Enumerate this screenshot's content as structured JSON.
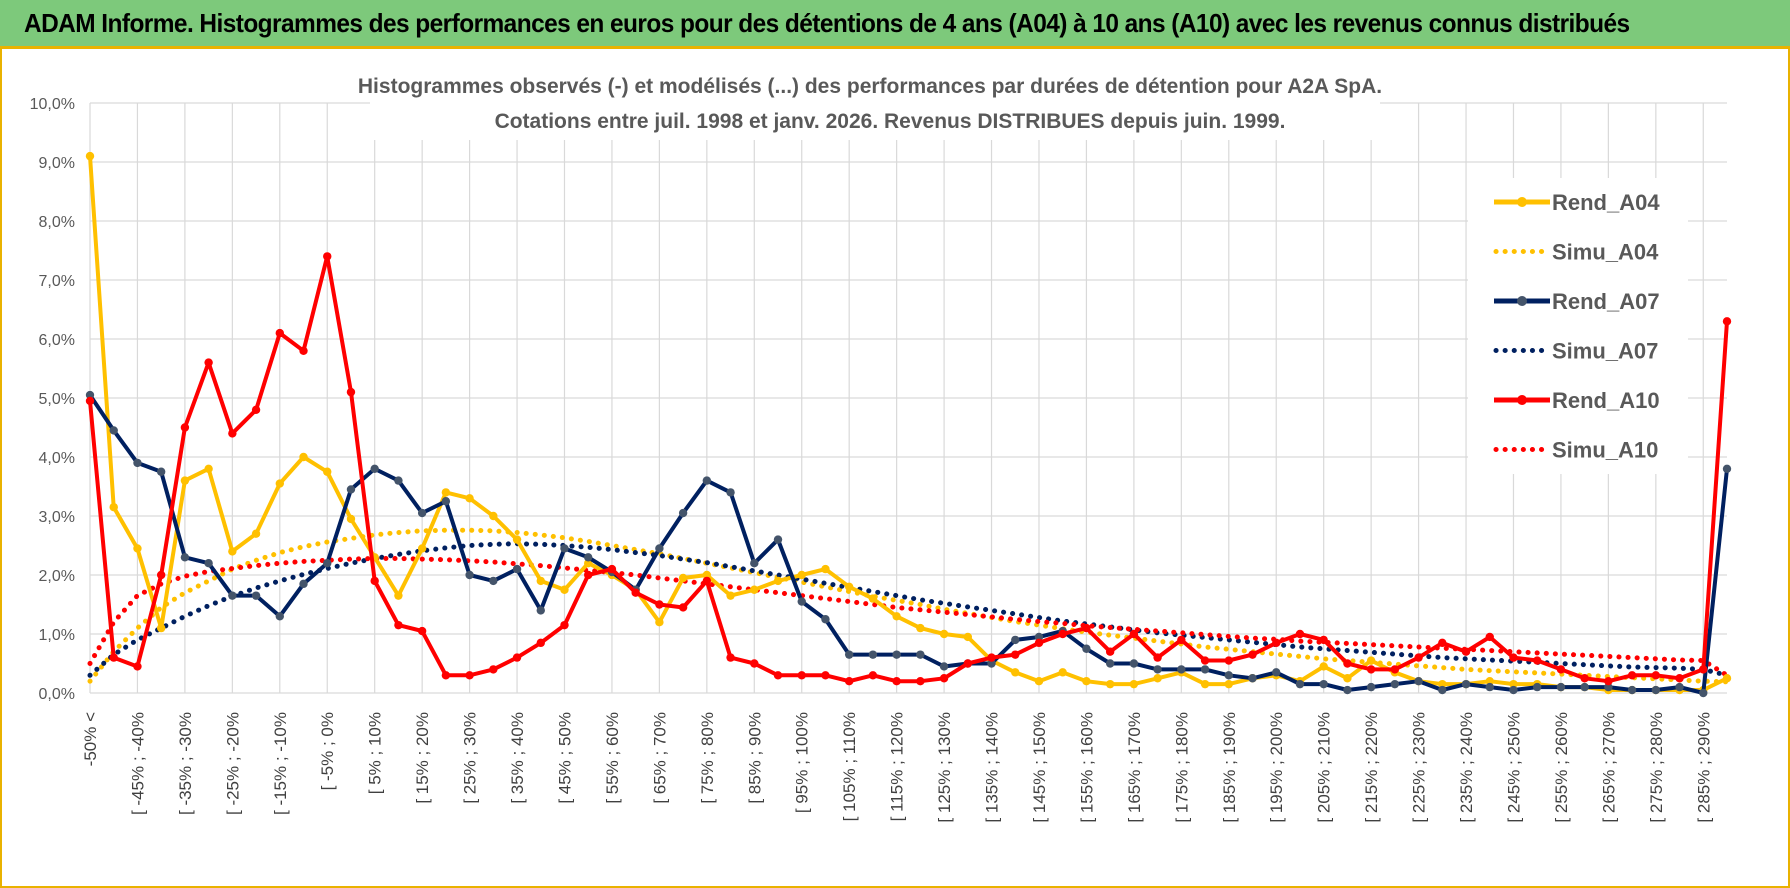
{
  "banner": {
    "title": "ADAM Informe. Histogrammes des performances en euros pour des détentions de 4 ans (A04) à 10 ans (A10) avec les revenus connus distribués"
  },
  "colors": {
    "banner_bg": "#7dc97b",
    "accent": "#e9b200",
    "A04": "#ffc000",
    "A07": "#002060",
    "A10": "#ff0000",
    "marker_A07": "#44546a",
    "grid": "#d9d9d9"
  },
  "chart_data": {
    "type": "line",
    "title_lines": [
      "Histogrammes observés (-) et modélisés (...) des performances par durées de détention pour A2A SpA.",
      "Cotations entre juil. 1998 et janv. 2026. Revenus DISTRIBUES depuis juin. 1999."
    ],
    "ylim": [
      0,
      10
    ],
    "y_ticks": [
      "0,0%",
      "1,0%",
      "2,0%",
      "3,0%",
      "4,0%",
      "5,0%",
      "6,0%",
      "7,0%",
      "8,0%",
      "9,0%",
      "10,0%"
    ],
    "n_points": 70,
    "x_tick_labels": [
      "-50% <",
      "[ -45% ; -40%",
      "[ -35% ; -30%",
      "[ -25% ; -20%",
      "[ -15% ; -10%",
      "[ -5% ; 0%",
      "[ 5% ; 10%",
      "[ 15% ; 20%",
      "[ 25% ; 30%",
      "[ 35% ; 40%",
      "[ 45% ; 50%",
      "[ 55% ; 60%",
      "[ 65% ; 70%",
      "[ 75% ; 80%",
      "[ 85% ; 90%",
      "[ 95% ; 100%",
      "[ 105% ; 110%",
      "[ 115% ; 120%",
      "[ 125% ; 130%",
      "[ 135% ; 140%",
      "[ 145% ; 150%",
      "[ 155% ; 160%",
      "[ 165% ; 170%",
      "[ 175% ; 180%",
      "[ 185% ; 190%",
      "[ 195% ; 200%",
      "[ 205% ; 210%",
      "[ 215% ; 220%",
      "[ 225% ; 230%",
      "[ 235% ; 240%",
      "[ 245% ; 250%",
      "[ 255% ; 260%",
      "[ 265% ; 270%",
      "[ 275% ; 280%",
      "[ 285% ; 290%"
    ],
    "legend": [
      "Rend_A04",
      "Simu_A04",
      "Rend_A07",
      "Simu_A07",
      "Rend_A10",
      "Simu_A10"
    ],
    "series": [
      {
        "name": "Rend_A04",
        "kind": "observed",
        "color": "#ffc000",
        "marker": "#ffc000",
        "values": [
          9.1,
          3.15,
          2.45,
          1.1,
          3.6,
          3.8,
          2.4,
          2.7,
          3.55,
          4.0,
          3.75,
          2.95,
          2.3,
          1.65,
          2.45,
          3.4,
          3.3,
          3.0,
          2.6,
          1.9,
          1.75,
          2.2,
          2.0,
          1.75,
          1.2,
          1.95,
          2.0,
          1.65,
          1.75,
          1.9,
          2.0,
          2.1,
          1.8,
          1.6,
          1.3,
          1.1,
          1.0,
          0.95,
          0.55,
          0.35,
          0.2,
          0.35,
          0.2,
          0.15,
          0.15,
          0.25,
          0.35,
          0.15,
          0.15,
          0.25,
          0.3,
          0.2,
          0.45,
          0.25,
          0.55,
          0.35,
          0.2,
          0.15,
          0.15,
          0.2,
          0.15,
          0.15,
          0.1,
          0.1,
          0.05,
          0.05,
          0.05,
          0.05,
          0.05,
          0.25
        ]
      },
      {
        "name": "Simu_A04",
        "kind": "model",
        "color": "#ffc000",
        "values": [
          0.2,
          0.7,
          1.1,
          1.45,
          1.7,
          1.9,
          2.1,
          2.25,
          2.38,
          2.48,
          2.56,
          2.62,
          2.68,
          2.72,
          2.75,
          2.76,
          2.76,
          2.75,
          2.72,
          2.68,
          2.63,
          2.57,
          2.5,
          2.43,
          2.36,
          2.28,
          2.2,
          2.12,
          2.04,
          1.96,
          1.88,
          1.8,
          1.72,
          1.64,
          1.57,
          1.5,
          1.42,
          1.35,
          1.28,
          1.21,
          1.15,
          1.09,
          1.03,
          0.98,
          0.93,
          0.88,
          0.83,
          0.78,
          0.74,
          0.7,
          0.66,
          0.62,
          0.58,
          0.55,
          0.52,
          0.49,
          0.46,
          0.43,
          0.4,
          0.38,
          0.36,
          0.34,
          0.32,
          0.3,
          0.28,
          0.26,
          0.24,
          0.22,
          0.2,
          0.19
        ]
      },
      {
        "name": "Rend_A07",
        "kind": "observed",
        "color": "#002060",
        "marker": "#44546a",
        "values": [
          5.05,
          4.45,
          3.9,
          3.75,
          2.3,
          2.2,
          1.65,
          1.65,
          1.3,
          1.85,
          2.2,
          3.45,
          3.8,
          3.6,
          3.05,
          3.25,
          2.0,
          1.9,
          2.1,
          1.4,
          2.45,
          2.3,
          2.05,
          1.75,
          2.45,
          3.05,
          3.6,
          3.4,
          2.2,
          2.6,
          1.55,
          1.25,
          0.65,
          0.65,
          0.65,
          0.65,
          0.45,
          0.5,
          0.5,
          0.9,
          0.95,
          1.05,
          0.75,
          0.5,
          0.5,
          0.4,
          0.4,
          0.4,
          0.3,
          0.25,
          0.35,
          0.15,
          0.15,
          0.05,
          0.1,
          0.15,
          0.2,
          0.05,
          0.15,
          0.1,
          0.05,
          0.1,
          0.1,
          0.1,
          0.1,
          0.05,
          0.05,
          0.1,
          0.0,
          3.8
        ]
      },
      {
        "name": "Simu_A07",
        "kind": "model",
        "color": "#002060",
        "values": [
          0.3,
          0.65,
          0.9,
          1.1,
          1.3,
          1.48,
          1.64,
          1.78,
          1.9,
          2.01,
          2.11,
          2.2,
          2.28,
          2.35,
          2.41,
          2.46,
          2.5,
          2.52,
          2.53,
          2.52,
          2.5,
          2.47,
          2.43,
          2.38,
          2.33,
          2.27,
          2.21,
          2.14,
          2.07,
          2.0,
          1.93,
          1.86,
          1.79,
          1.72,
          1.65,
          1.58,
          1.52,
          1.46,
          1.4,
          1.34,
          1.28,
          1.22,
          1.17,
          1.12,
          1.07,
          1.02,
          0.98,
          0.94,
          0.9,
          0.86,
          0.82,
          0.78,
          0.75,
          0.72,
          0.69,
          0.66,
          0.63,
          0.6,
          0.58,
          0.56,
          0.54,
          0.52,
          0.5,
          0.48,
          0.46,
          0.44,
          0.43,
          0.42,
          0.4,
          0.3
        ]
      },
      {
        "name": "Rend_A10",
        "kind": "observed",
        "color": "#ff0000",
        "marker": "#ff0000",
        "values": [
          4.95,
          0.6,
          0.45,
          2.0,
          4.5,
          5.6,
          4.4,
          4.8,
          6.1,
          5.8,
          7.4,
          5.1,
          1.9,
          1.15,
          1.05,
          0.3,
          0.3,
          0.4,
          0.6,
          0.85,
          1.15,
          2.0,
          2.1,
          1.7,
          1.5,
          1.45,
          1.9,
          0.6,
          0.5,
          0.3,
          0.3,
          0.3,
          0.2,
          0.3,
          0.2,
          0.2,
          0.25,
          0.5,
          0.6,
          0.65,
          0.85,
          1.0,
          1.1,
          0.7,
          1.0,
          0.6,
          0.9,
          0.55,
          0.55,
          0.65,
          0.85,
          1.0,
          0.9,
          0.5,
          0.4,
          0.4,
          0.6,
          0.85,
          0.7,
          0.95,
          0.6,
          0.55,
          0.4,
          0.25,
          0.2,
          0.3,
          0.3,
          0.25,
          0.4,
          6.3
        ]
      },
      {
        "name": "Simu_A10",
        "kind": "model",
        "color": "#ff0000",
        "values": [
          0.5,
          1.2,
          1.65,
          1.85,
          1.98,
          2.06,
          2.11,
          2.16,
          2.2,
          2.23,
          2.25,
          2.27,
          2.28,
          2.28,
          2.27,
          2.26,
          2.24,
          2.22,
          2.19,
          2.16,
          2.12,
          2.08,
          2.04,
          2.0,
          1.95,
          1.9,
          1.85,
          1.8,
          1.75,
          1.7,
          1.65,
          1.6,
          1.55,
          1.5,
          1.45,
          1.41,
          1.37,
          1.33,
          1.29,
          1.25,
          1.21,
          1.18,
          1.14,
          1.11,
          1.08,
          1.05,
          1.02,
          0.99,
          0.96,
          0.93,
          0.91,
          0.88,
          0.86,
          0.84,
          0.82,
          0.8,
          0.78,
          0.76,
          0.74,
          0.72,
          0.7,
          0.68,
          0.66,
          0.64,
          0.62,
          0.6,
          0.58,
          0.56,
          0.55,
          0.3
        ]
      }
    ]
  }
}
